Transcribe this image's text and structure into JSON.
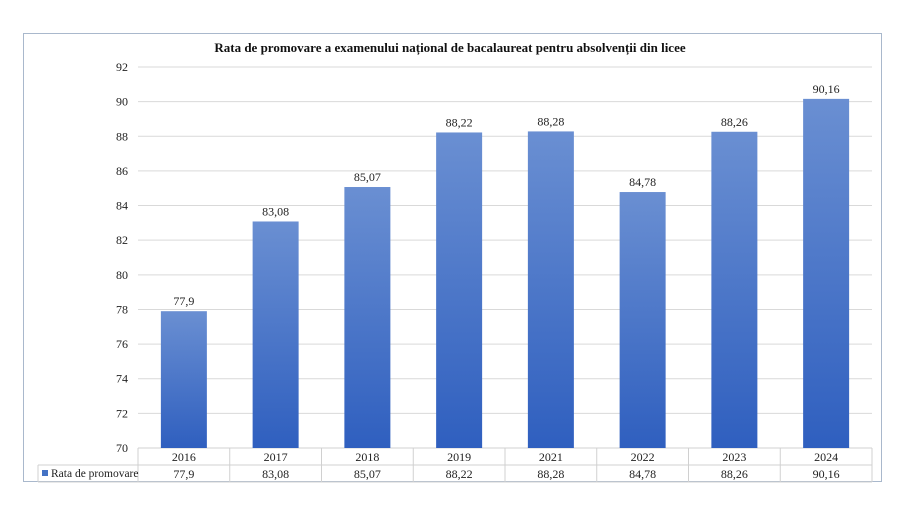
{
  "chart_data": {
    "type": "bar",
    "title": "Rata de promovare a examenului național de bacalaureat pentru absolvenții din licee",
    "categories": [
      "2016",
      "2017",
      "2018",
      "2019",
      "2021",
      "2022",
      "2023",
      "2024"
    ],
    "series": [
      {
        "name": "Rata de promovare",
        "values": [
          77.9,
          83.08,
          85.07,
          88.22,
          88.28,
          84.78,
          88.26,
          90.16
        ],
        "labels": [
          "77,9",
          "83,08",
          "85,07",
          "88,22",
          "88,28",
          "84,78",
          "88,26",
          "90,16"
        ],
        "color": "#4472c4"
      }
    ],
    "ylim": [
      70,
      92
    ],
    "yticks": [
      70,
      72,
      74,
      76,
      78,
      80,
      82,
      84,
      86,
      88,
      90,
      92
    ],
    "grid": true,
    "legend": "data-table-left",
    "xlabel": "",
    "ylabel": ""
  }
}
